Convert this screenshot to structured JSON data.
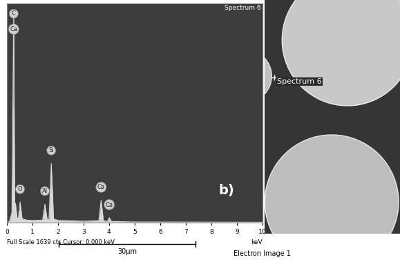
{
  "chart_data": {
    "type": "line",
    "title": "Spectrum 6",
    "xlabel": "keV",
    "footer": "Full Scale 1639 cts Cursor: 0.000 keV",
    "x": [
      0,
      0.1,
      0.2,
      0.27,
      0.31,
      0.34,
      0.4,
      0.45,
      0.52,
      0.6,
      0.8,
      1.0,
      1.4,
      1.49,
      1.58,
      1.65,
      1.74,
      1.83,
      2.0,
      3.0,
      3.6,
      3.69,
      3.78,
      3.93,
      4.01,
      4.09,
      5,
      10
    ],
    "values": [
      0,
      10,
      80,
      1639,
      120,
      150,
      40,
      30,
      160,
      30,
      20,
      18,
      20,
      143,
      25,
      25,
      460,
      30,
      18,
      12,
      15,
      175,
      15,
      10,
      40,
      10,
      6,
      4
    ],
    "color": "#d8d8d8",
    "xlim": [
      0,
      10
    ],
    "xticks": [
      0,
      1,
      2,
      3,
      4,
      5,
      6,
      7,
      8,
      9,
      10
    ],
    "ylim": [
      0,
      1700
    ],
    "yticks": [],
    "tick_labels": "x",
    "annotations": [
      {
        "text": "C",
        "x": 0.27,
        "y": 1620
      },
      {
        "text": "Ca",
        "x": 0.27,
        "y": 1500
      },
      {
        "text": "O",
        "x": 0.52,
        "y": 260
      },
      {
        "text": "Al",
        "x": 1.49,
        "y": 245
      },
      {
        "text": "Si",
        "x": 1.74,
        "y": 560
      },
      {
        "text": "Ca",
        "x": 3.69,
        "y": 275
      },
      {
        "text": "Ca",
        "x": 4.01,
        "y": 140
      },
      {
        "text": "b)",
        "x": 8.6,
        "y": 250
      }
    ]
  },
  "image": {
    "title": "Electron Image 1",
    "scale_bar": "30µm",
    "marker_label": "Spectrum 6"
  }
}
